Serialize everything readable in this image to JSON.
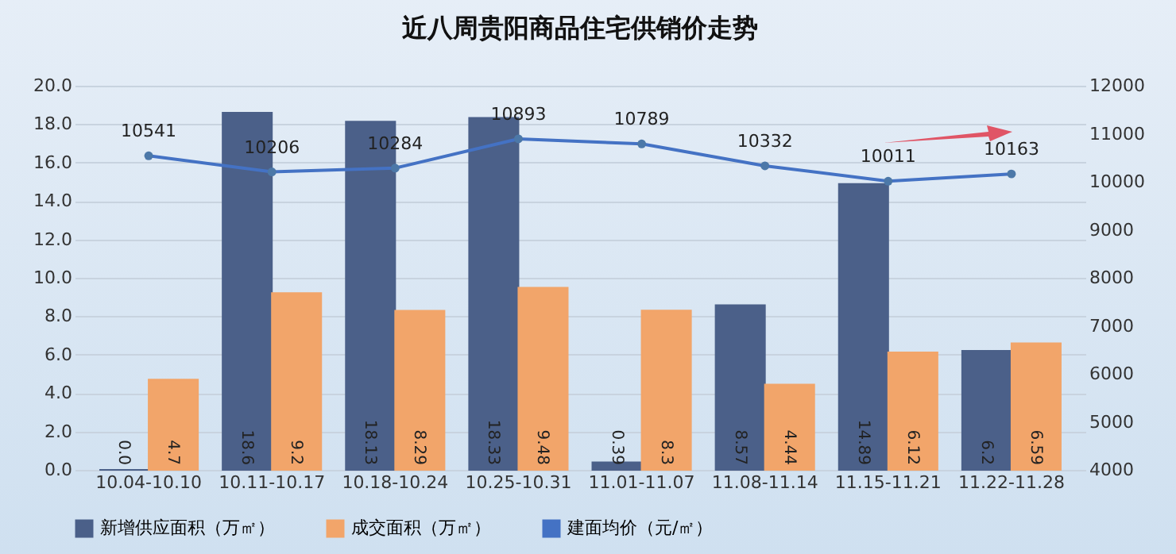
{
  "chart_data": {
    "type": "bar",
    "title": "近八周贵阳商品住宅供销价走势",
    "categories": [
      "10.04-10.10",
      "10.11-10.17",
      "10.18-10.24",
      "10.25-10.31",
      "11.01-11.07",
      "11.08-11.14",
      "11.15-11.21",
      "11.22-11.28"
    ],
    "series": [
      {
        "name": "新增供应面积（万㎡）",
        "color": "#4b6089",
        "values": [
          0.0,
          18.6,
          18.13,
          18.33,
          0.39,
          8.57,
          14.89,
          6.2
        ],
        "value_labels": [
          "0.0",
          "18.6",
          "18.13",
          "18.33",
          "0.39",
          "8.57",
          "14.89",
          "6.2"
        ]
      },
      {
        "name": "成交面积（万㎡）",
        "color": "#f2a56a",
        "values": [
          4.7,
          9.2,
          8.29,
          9.48,
          8.3,
          4.44,
          6.12,
          6.59
        ],
        "value_labels": [
          "4.7",
          "9.2",
          "8.29",
          "9.48",
          "8.3",
          "4.44",
          "6.12",
          "6.59"
        ]
      },
      {
        "name": "建面均价（元/㎡）",
        "type": "line",
        "axis": "y2",
        "color": "#4472c4",
        "values": [
          10541,
          10206,
          10284,
          10893,
          10789,
          10332,
          10011,
          10163
        ],
        "value_labels": [
          "10541",
          "10206",
          "10284",
          "10893",
          "10789",
          "10332",
          "10011",
          "10163"
        ]
      }
    ],
    "ylim": [
      0,
      20
    ],
    "yticks": [
      {
        "value": 0,
        "label": "0.0"
      },
      {
        "value": 2,
        "label": "2.0"
      },
      {
        "value": 4,
        "label": "4.0"
      },
      {
        "value": 6,
        "label": "6.0"
      },
      {
        "value": 8,
        "label": "8.0"
      },
      {
        "value": 10,
        "label": "10.0"
      },
      {
        "value": 12,
        "label": "12.0"
      },
      {
        "value": 14,
        "label": "14.0"
      },
      {
        "value": 16,
        "label": "16.0"
      },
      {
        "value": 18,
        "label": "18.0"
      },
      {
        "value": 20,
        "label": "20.0"
      }
    ],
    "y2lim": [
      4000,
      12000
    ],
    "y2ticks": [
      4000,
      5000,
      6000,
      7000,
      8000,
      9000,
      10000,
      11000,
      12000
    ],
    "grid": "y",
    "legend": "bottom",
    "marker": "circle",
    "line_style": "solid"
  }
}
